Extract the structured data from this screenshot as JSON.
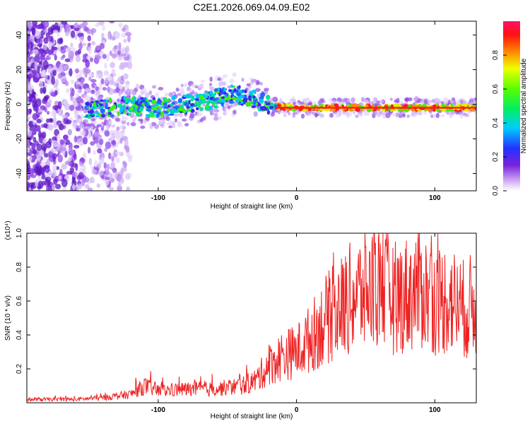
{
  "title": "C2E1.2026.069.04.09.E02",
  "chart_data": [
    {
      "type": "heatmap",
      "name": "spectrogram",
      "xlabel": "Height of straight line (km)",
      "ylabel": "Frequency (Hz)",
      "xlim": [
        -195,
        130
      ],
      "ylim": [
        -50,
        48
      ],
      "x_ticks": [
        -100,
        0,
        100
      ],
      "y_ticks": [
        -40,
        -20,
        0,
        20,
        40
      ],
      "colorbar": {
        "label": "Normalized spectral amplitude",
        "range": [
          0,
          1
        ],
        "ticks": [
          0.0,
          0.2,
          0.4,
          0.6,
          0.8
        ]
      },
      "ridge": {
        "description": "dominant signal band centered near 0 Hz",
        "x": [
          -150,
          -120,
          -100,
          -80,
          -60,
          -45,
          -30,
          -20,
          0,
          50,
          100,
          130
        ],
        "freq": [
          -3,
          -1,
          -2,
          0,
          3,
          6,
          3,
          -1,
          -2,
          -2,
          -2,
          -2
        ]
      }
    },
    {
      "type": "line",
      "name": "snr",
      "xlabel": "Height of straight line (km)",
      "ylabel": "SNR (10 * v/v)",
      "y_multiplier": "(x10⁴)",
      "xlim": [
        -195,
        130
      ],
      "ylim": [
        0,
        1.0
      ],
      "x_ticks": [
        -100,
        0,
        100
      ],
      "y_ticks": [
        0.2,
        0.4,
        0.6,
        0.8,
        1.0
      ],
      "series": [
        {
          "name": "SNR",
          "color": "#ee2222",
          "x": [
            -195,
            -160,
            -140,
            -120,
            -110,
            -100,
            -80,
            -60,
            -40,
            -30,
            -20,
            -10,
            0,
            10,
            20,
            30,
            40,
            50,
            60,
            70,
            80,
            90,
            100,
            110,
            120,
            130
          ],
          "y": [
            0.02,
            0.02,
            0.03,
            0.05,
            0.1,
            0.07,
            0.08,
            0.08,
            0.1,
            0.13,
            0.22,
            0.28,
            0.3,
            0.38,
            0.48,
            0.55,
            0.62,
            0.66,
            0.7,
            0.62,
            0.64,
            0.68,
            0.6,
            0.62,
            0.55,
            0.58
          ]
        }
      ]
    }
  ]
}
